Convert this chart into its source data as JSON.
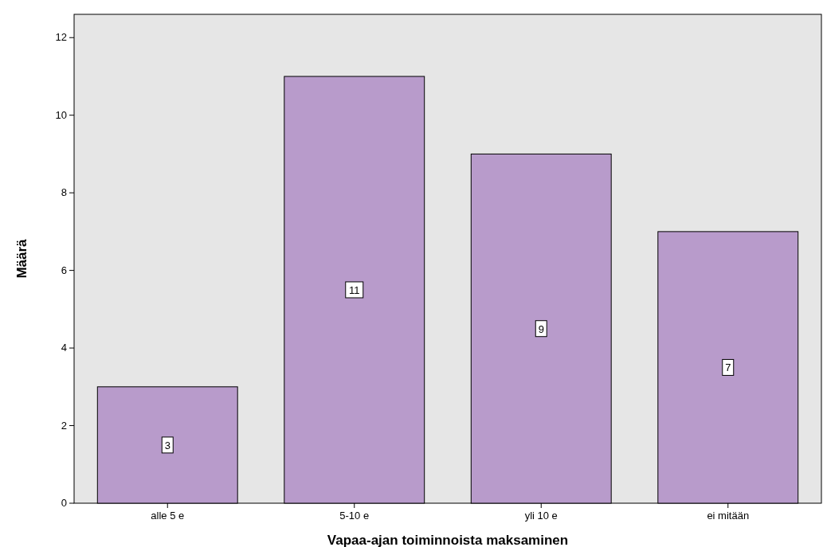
{
  "chart_data": {
    "type": "bar",
    "xlabel": "Vapaa-ajan toiminnoista maksaminen",
    "ylabel": "Määrä",
    "categories": [
      "alle 5 e",
      "5-10 e",
      "yli 10 e",
      "ei mitään"
    ],
    "values": [
      3,
      11,
      9,
      7
    ],
    "color": "#b89bcb",
    "ylim": [
      0,
      12.6
    ],
    "yticks": [
      0,
      2,
      4,
      6,
      8,
      10,
      12
    ],
    "grid": false,
    "data_labels": true
  }
}
